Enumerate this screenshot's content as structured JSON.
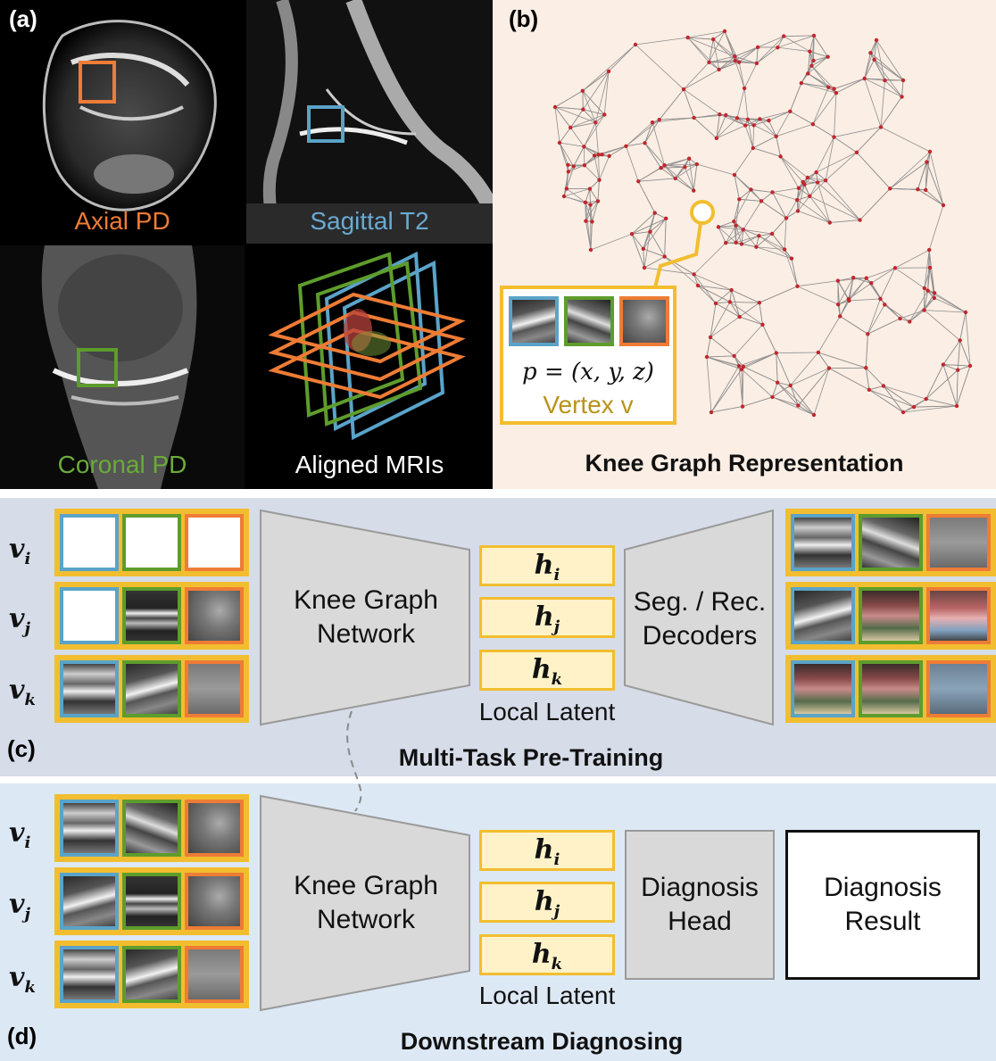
{
  "panel_a": {
    "tag": "(a)",
    "tiles": [
      {
        "label": "Axial PD",
        "color": "#ee7c36"
      },
      {
        "label": "Sagittal T2",
        "color": "#6aaad2"
      },
      {
        "label": "Coronal PD",
        "color": "#6bab3a"
      },
      {
        "label": "Aligned MRIs",
        "color": "#ffffff"
      }
    ]
  },
  "panel_b": {
    "tag": "(b)",
    "caption": "Knee Graph Representation",
    "vertex_formula": "p = (x, y, z)",
    "vertex_label": "Vertex v",
    "node_color": "#c0272d",
    "edge_color": "#8f8f8f",
    "highlight_color": "#f2be2f"
  },
  "panel_c": {
    "tag": "(c)",
    "caption": "Multi-Task Pre-Training",
    "rows": [
      "v",
      "v",
      "v"
    ],
    "row_subs": [
      "i",
      "j",
      "k"
    ],
    "network_label": "Knee Graph\nNetwork",
    "latents": [
      {
        "main": "h",
        "sub": "i"
      },
      {
        "main": "h",
        "sub": "j"
      },
      {
        "main": "h",
        "sub": "k"
      }
    ],
    "latent_caption": "Local Latent",
    "decoder_label": "Seg. / Rec.\nDecoders"
  },
  "panel_d": {
    "tag": "(d)",
    "caption": "Downstream Diagnosing",
    "rows": [
      "v",
      "v",
      "v"
    ],
    "row_subs": [
      "i",
      "j",
      "k"
    ],
    "network_label": "Knee Graph\nNetwork",
    "latents": [
      {
        "main": "h",
        "sub": "i"
      },
      {
        "main": "h",
        "sub": "j"
      },
      {
        "main": "h",
        "sub": "k"
      }
    ],
    "latent_caption": "Local Latent",
    "head_label": "Diagnosis\nHead",
    "result_label": "Diagnosis\nResult"
  },
  "colors": {
    "pretrain_bg": "#d6dce8",
    "downstream_bg": "#dde8f5",
    "panel_b_bg": "#fbeee4",
    "frame_yellow": "#f2be2f"
  }
}
